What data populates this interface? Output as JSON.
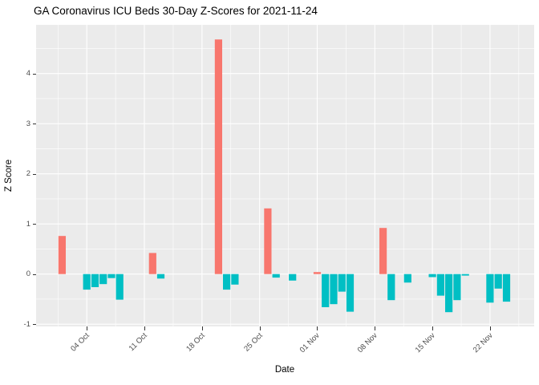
{
  "title": "GA Coronavirus ICU Beds 30-Day Z-Scores for 2021-11-24",
  "axes": {
    "x_label": "Date",
    "y_label": "Z Score"
  },
  "chart_data": {
    "type": "bar",
    "title": "GA Coronavirus ICU Beds 30-Day Z-Scores for 2021-11-24",
    "xlabel": "Date",
    "ylabel": "Z Score",
    "x": [
      "2021-10-01",
      "2021-10-04",
      "2021-10-05",
      "2021-10-06",
      "2021-10-07",
      "2021-10-08",
      "2021-10-12",
      "2021-10-13",
      "2021-10-20",
      "2021-10-21",
      "2021-10-22",
      "2021-10-26",
      "2021-10-27",
      "2021-10-29",
      "2021-11-01",
      "2021-11-02",
      "2021-11-03",
      "2021-11-04",
      "2021-11-05",
      "2021-11-09",
      "2021-11-10",
      "2021-11-12",
      "2021-11-15",
      "2021-11-16",
      "2021-11-17",
      "2021-11-18",
      "2021-11-19",
      "2021-11-22",
      "2021-11-23",
      "2021-11-24"
    ],
    "values": [
      0.76,
      -0.31,
      -0.26,
      -0.2,
      -0.08,
      -0.51,
      0.42,
      -0.09,
      4.68,
      -0.31,
      -0.21,
      1.31,
      -0.07,
      -0.13,
      0.04,
      -0.66,
      -0.6,
      -0.35,
      -0.75,
      0.92,
      -0.52,
      -0.17,
      -0.06,
      -0.43,
      -0.76,
      -0.52,
      -0.03,
      -0.57,
      -0.29,
      -0.55
    ],
    "x_ticks": [
      {
        "date": "2021-10-04",
        "label": "04 Oct"
      },
      {
        "date": "2021-10-11",
        "label": "11 Oct"
      },
      {
        "date": "2021-10-18",
        "label": "18 Oct"
      },
      {
        "date": "2021-10-25",
        "label": "25 Oct"
      },
      {
        "date": "2021-11-01",
        "label": "01 Nov"
      },
      {
        "date": "2021-11-08",
        "label": "08 Nov"
      },
      {
        "date": "2021-11-15",
        "label": "15 Nov"
      },
      {
        "date": "2021-11-22",
        "label": "22 Nov"
      }
    ],
    "y_ticks": [
      -1,
      0,
      1,
      2,
      3,
      4
    ],
    "ylim": [
      -1.05,
      4.97
    ],
    "grid": "major+minor",
    "legend_position": "none",
    "colors": {
      "positive_bar": "#F8766D",
      "negative_bar": "#00BFC4",
      "panel_background": "#EBEBEB",
      "gridline": "#FFFFFF",
      "tick_label": "#4D4D4D",
      "tick_mark": "#333333",
      "text": "#000000"
    }
  }
}
